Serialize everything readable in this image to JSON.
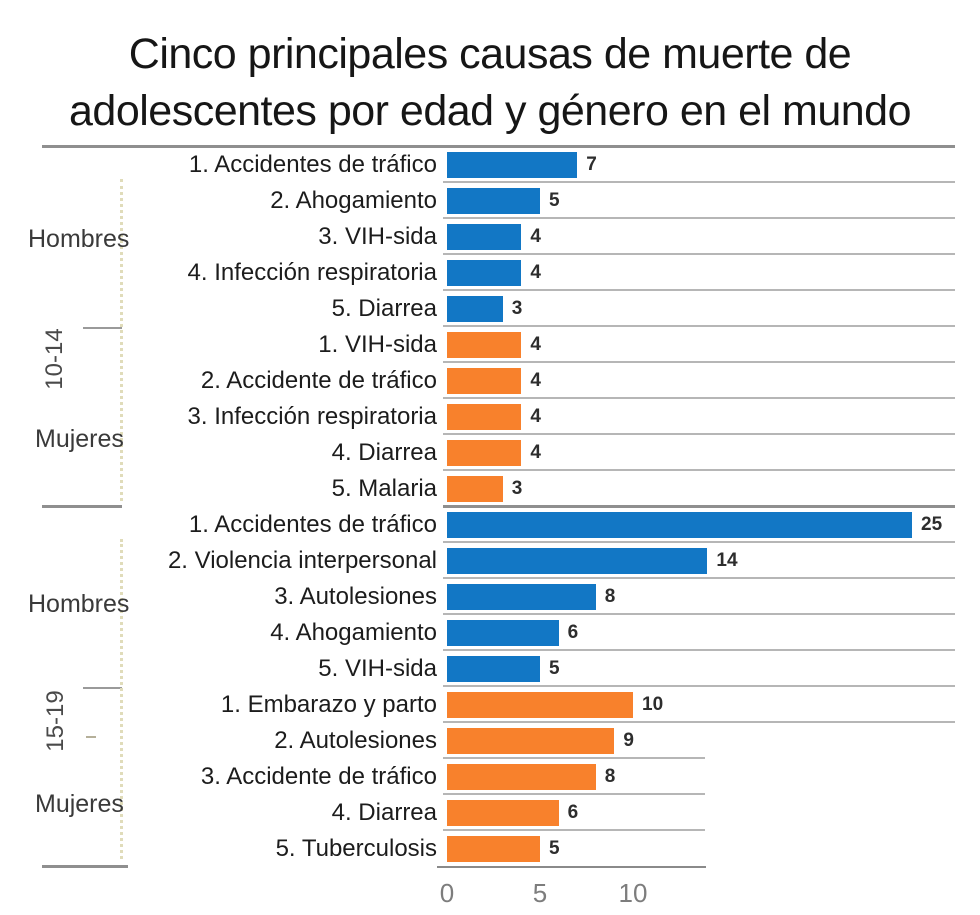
{
  "title": "Cinco principales causas de muerte de adolescentes por edad y género en el mundo",
  "title_lines": [
    "Cinco principales causas de muerte de",
    "adolescentes por edad y género en el mundo"
  ],
  "colors": {
    "male_bar": "#1277c5",
    "female_bar": "#f8812c",
    "gridline": "#b6b6b6",
    "axis_line": "#8f8f8f"
  },
  "chart_data": {
    "type": "bar",
    "orientation": "horizontal",
    "title": "Cinco principales causas de muerte de adolescentes por edad y género en el mundo",
    "xlabel": "",
    "ylabel": "",
    "xlim": [
      0,
      27.5
    ],
    "x_ticks": [
      0,
      5,
      10
    ],
    "grid": true,
    "legend": "none",
    "series_colors": {
      "hombres": "#1277c5",
      "mujeres": "#f8812c"
    },
    "groups": [
      {
        "age": "10-14",
        "subgroups": [
          {
            "gender": "Hombres",
            "color": "#1277c5",
            "rows": [
              {
                "label": "1. Accidentes de tráfico",
                "value": 7
              },
              {
                "label": "2. Ahogamiento",
                "value": 5
              },
              {
                "label": "3. VIH-sida",
                "value": 4
              },
              {
                "label": "4. Infección respiratoria",
                "value": 4
              },
              {
                "label": "5. Diarrea",
                "value": 3
              }
            ]
          },
          {
            "gender": "Mujeres",
            "color": "#f8812c",
            "rows": [
              {
                "label": "1. VIH-sida",
                "value": 4
              },
              {
                "label": "2. Accidente de tráfico",
                "value": 4
              },
              {
                "label": "3. Infección respiratoria",
                "value": 4
              },
              {
                "label": "4. Diarrea",
                "value": 4
              },
              {
                "label": "5. Malaria",
                "value": 3
              }
            ]
          }
        ]
      },
      {
        "age": "15-19",
        "subgroups": [
          {
            "gender": "Hombres",
            "color": "#1277c5",
            "rows": [
              {
                "label": "1. Accidentes de tráfico",
                "value": 25
              },
              {
                "label": "2. Violencia interpersonal",
                "value": 14
              },
              {
                "label": "3. Autolesiones",
                "value": 8
              },
              {
                "label": "4. Ahogamiento",
                "value": 6
              },
              {
                "label": "5. VIH-sida",
                "value": 5
              }
            ]
          },
          {
            "gender": "Mujeres",
            "color": "#f8812c",
            "rows": [
              {
                "label": "1. Embarazo y parto",
                "value": 10
              },
              {
                "label": "2. Autolesiones",
                "value": 9
              },
              {
                "label": "3. Accidente de tráfico",
                "value": 8
              },
              {
                "label": "4. Diarrea",
                "value": 6
              },
              {
                "label": "5. Tuberculosis",
                "value": 5
              }
            ]
          }
        ]
      }
    ]
  }
}
